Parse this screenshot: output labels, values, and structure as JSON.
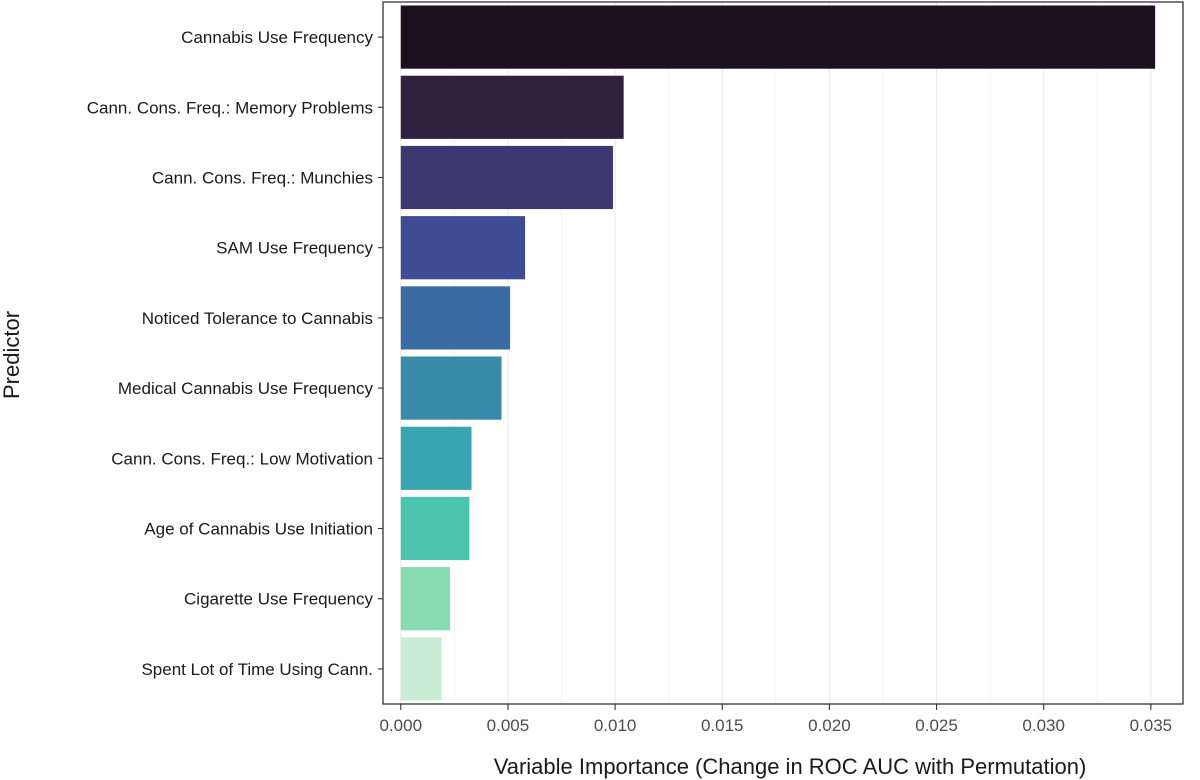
{
  "chart_data": {
    "type": "bar",
    "orientation": "horizontal",
    "title": "",
    "xlabel": "Variable Importance (Change in ROC AUC with Permutation)",
    "ylabel": "Predictor",
    "xlim": [
      -0.00083,
      0.0365
    ],
    "xticks": [
      0.0,
      0.005,
      0.01,
      0.015,
      0.02,
      0.025,
      0.03,
      0.035
    ],
    "xtick_labels": [
      "0.000",
      "0.005",
      "0.010",
      "0.015",
      "0.020",
      "0.025",
      "0.030",
      "0.035"
    ],
    "grid": "vertical-major-and-minor",
    "legend": "none",
    "categories": [
      "Cannabis Use Frequency",
      "Cann. Cons. Freq.: Memory Problems",
      "Cann. Cons. Freq.: Munchies",
      "SAM Use Frequency",
      "Noticed Tolerance to Cannabis",
      "Medical Cannabis Use Frequency",
      "Cann. Cons. Freq.: Low Motivation",
      "Age of Cannabis Use Initiation",
      "Cigarette Use Frequency",
      "Spent Lot of Time Using Cann."
    ],
    "values": [
      0.0352,
      0.0104,
      0.0099,
      0.0058,
      0.0051,
      0.0047,
      0.0033,
      0.0032,
      0.0023,
      0.0019
    ],
    "colors": [
      "#1c0f1f",
      "#2f2040",
      "#3e3770",
      "#3e4c94",
      "#3a6ba3",
      "#3a8aaa",
      "#37a6b1",
      "#4bc4ad",
      "#86dbb0",
      "#c8edd4"
    ]
  }
}
